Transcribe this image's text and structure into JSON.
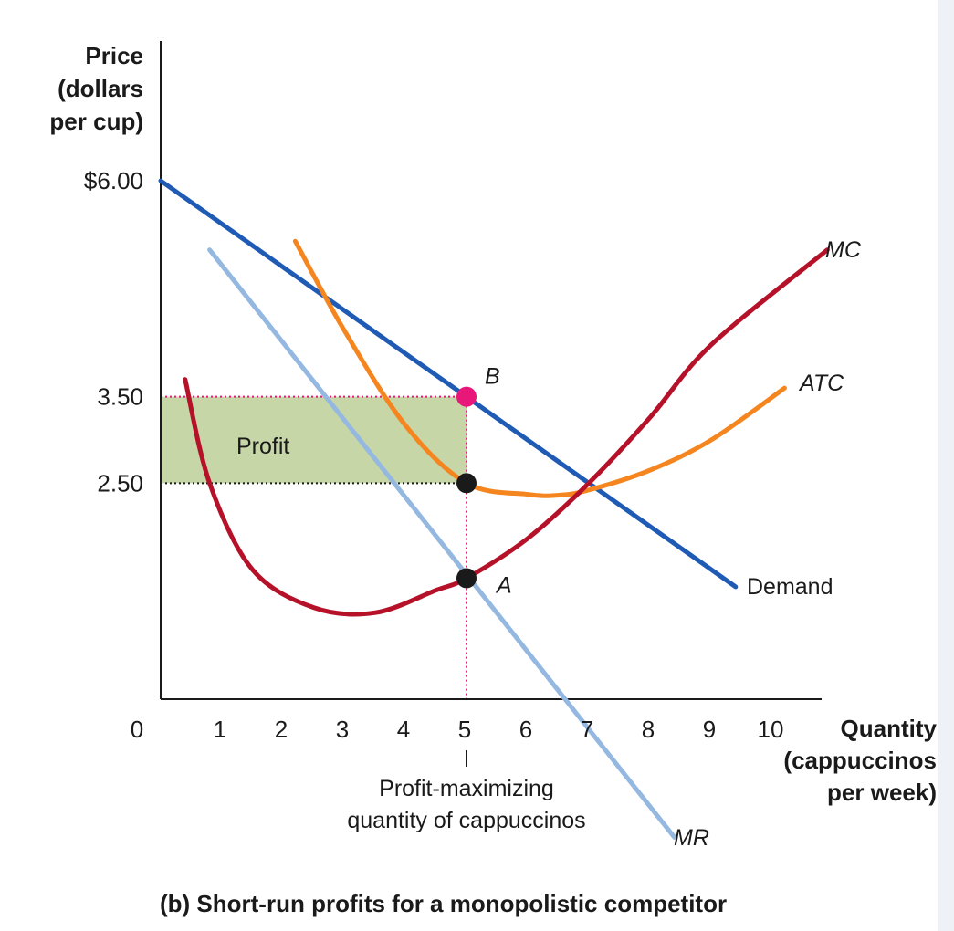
{
  "chart_data": {
    "type": "line",
    "title": "(b) Short-run profits for a monopolistic competitor",
    "ylabel": [
      "Price",
      "(dollars",
      "per cup)"
    ],
    "xlabel": [
      "Quantity",
      "(cappuccinos",
      "per week)"
    ],
    "xlim": [
      0,
      10
    ],
    "ylim": [
      0,
      6
    ],
    "x_ticks": [
      "0",
      "1",
      "2",
      "3",
      "4",
      "5",
      "6",
      "7",
      "8",
      "9",
      "10"
    ],
    "y_ticks": [
      {
        "value": 6.0,
        "label": "$6.00"
      },
      {
        "value": 3.5,
        "label": "3.50"
      },
      {
        "value": 2.5,
        "label": "2.50"
      }
    ],
    "grid": false,
    "series": [
      {
        "name": "Demand",
        "color": "#1f5bb5",
        "points": [
          [
            0,
            6.0
          ],
          [
            9.4,
            1.3
          ]
        ]
      },
      {
        "name": "MR",
        "color": "#94b8e0",
        "points": [
          [
            0.8,
            5.2
          ],
          [
            8.4,
            -1.6
          ]
        ]
      },
      {
        "name": "MC",
        "color": "#b5122a",
        "points": [
          [
            0.4,
            3.7
          ],
          [
            0.8,
            2.5
          ],
          [
            1.5,
            1.5
          ],
          [
            2.5,
            1.06
          ],
          [
            3.5,
            1.0
          ],
          [
            4.5,
            1.26
          ],
          [
            5.0,
            1.4
          ],
          [
            6.0,
            1.86
          ],
          [
            7.0,
            2.5
          ],
          [
            8.0,
            3.26
          ],
          [
            9.0,
            4.1
          ],
          [
            10.9,
            5.2
          ]
        ]
      },
      {
        "name": "ATC",
        "color": "#f5851f",
        "points": [
          [
            2.2,
            5.3
          ],
          [
            3.0,
            4.27
          ],
          [
            4.0,
            3.17
          ],
          [
            5.0,
            2.5
          ],
          [
            6.0,
            2.37
          ],
          [
            6.5,
            2.36
          ],
          [
            7.0,
            2.42
          ],
          [
            8.0,
            2.65
          ],
          [
            9.0,
            3.0
          ],
          [
            10.2,
            3.6
          ]
        ]
      }
    ],
    "points": [
      {
        "label": "B",
        "x": 5,
        "y": 3.5,
        "color": "#e8177a"
      },
      {
        "label": "",
        "x": 5,
        "y": 2.5,
        "color": "#1a1a1a"
      },
      {
        "label": "A",
        "x": 5,
        "y": 1.4,
        "color": "#1a1a1a"
      }
    ],
    "profit_area": {
      "label": "Profit",
      "x": [
        0,
        5
      ],
      "y": [
        2.5,
        3.5
      ],
      "color": "#c7d6a7"
    },
    "highlight_color": "#e8177a",
    "highlight_x": "5",
    "highlight_y": "3.50",
    "annotation": [
      "Profit-maximizing",
      "quantity of cappuccinos"
    ]
  }
}
